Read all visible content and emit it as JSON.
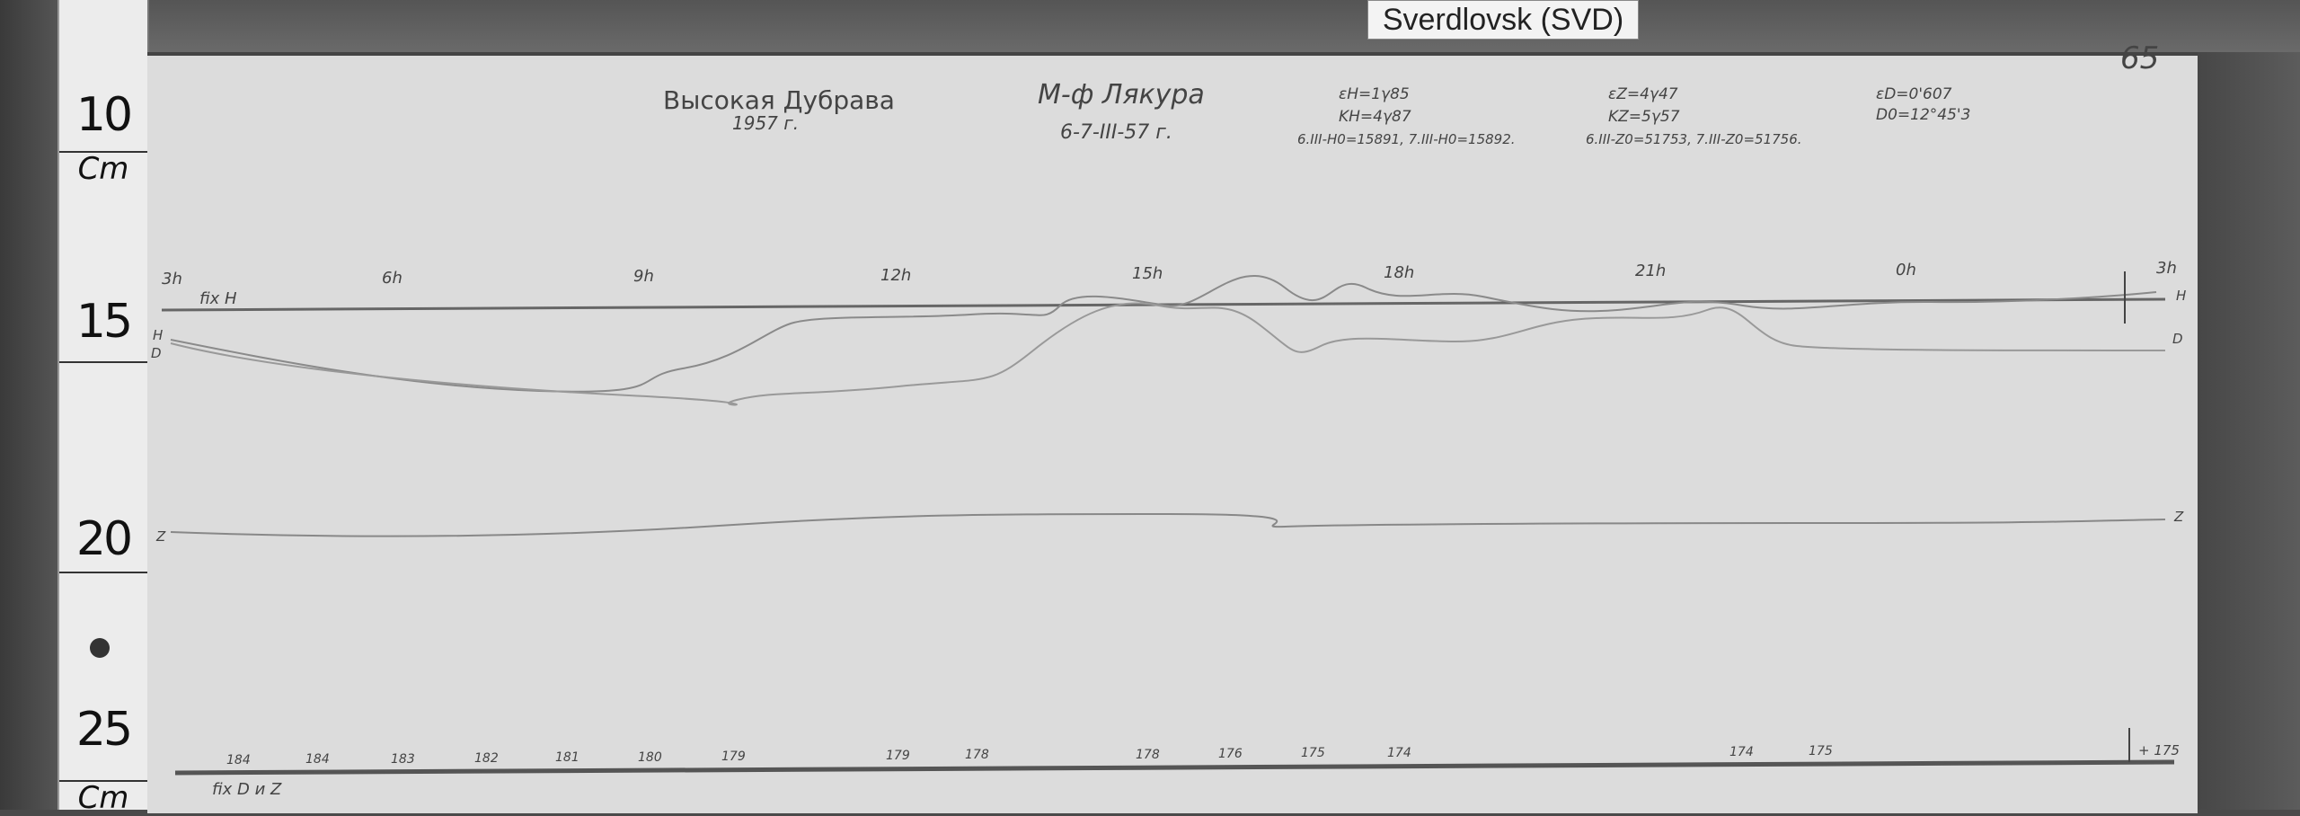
{
  "label": "Sverdlovsk (SVD)",
  "ruler": {
    "marks": [
      "10",
      "Cm",
      "15",
      "20",
      "25",
      "Cm"
    ]
  },
  "sheet": {
    "page_number": "65",
    "station": "Высокая Дубрава",
    "year": "1957 г.",
    "variometer": "М-ф Лякура",
    "date": "6-7-III-57 г.",
    "params": {
      "eH": "εH=1γ85",
      "KH": "KH=4γ87",
      "eZ": "εZ=4γ47",
      "KZ": "KZ=5γ57",
      "eD": "εD=0'607",
      "D0": "D0=12°45'3",
      "H0": "6.III-H0=15891, 7.III-H0=15892.",
      "Z0": "6.III-Z0=51753, 7.III-Z0=51756."
    },
    "hours": [
      "3h",
      "6h",
      "9h",
      "12h",
      "15h",
      "18h",
      "21h",
      "0h",
      "3h"
    ],
    "baseline_H_label": "fix H",
    "baseline_DZ_label": "fix D и Z",
    "trace_labels": {
      "H_left": "H",
      "D_left": "D",
      "Z_left": "Z",
      "H_right": "H",
      "D_right": "D",
      "Z_right": "Z"
    },
    "temperatures": [
      "184",
      "184",
      "183",
      "182",
      "181",
      "180",
      "179",
      "179",
      "178",
      "178",
      "176",
      "175",
      "174",
      "174",
      "175"
    ],
    "temp_end": "+ 175"
  }
}
